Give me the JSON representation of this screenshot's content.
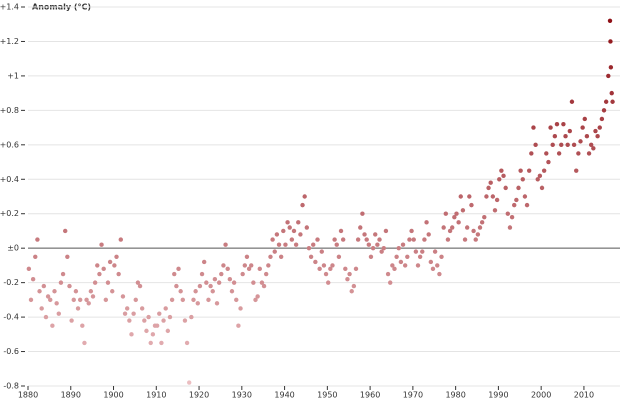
{
  "chart_data": {
    "type": "scatter",
    "y_label": "Anomaly (°C)",
    "xlim": [
      1880,
      2017.5
    ],
    "ylim": [
      -0.8,
      1.4
    ],
    "xticks": [
      1880,
      1890,
      1900,
      1910,
      1920,
      1930,
      1940,
      1950,
      1960,
      1970,
      1980,
      1990,
      2000,
      2010
    ],
    "yticks": [
      {
        "value": 1.4,
        "label": "+1.4"
      },
      {
        "value": 1.2,
        "label": "+1.2"
      },
      {
        "value": 1,
        "label": "+1"
      },
      {
        "value": 0.8,
        "label": "+0.8"
      },
      {
        "value": 0.6,
        "label": "+0.6"
      },
      {
        "value": 0.4,
        "label": "+0.4"
      },
      {
        "value": 0.2,
        "label": "+0.2"
      },
      {
        "value": 0,
        "label": "±0"
      },
      {
        "value": -0.2,
        "label": "-0.2"
      },
      {
        "value": -0.4,
        "label": "-0.4"
      },
      {
        "value": -0.6,
        "label": "-0.6"
      },
      {
        "value": -0.8,
        "label": "-0.8"
      }
    ],
    "grid": true,
    "color_scale": [
      "#ecc0c3",
      "#8b0a10"
    ],
    "x": [
      1880.2,
      1880.7,
      1881.2,
      1881.7,
      1882.2,
      1882.7,
      1883.2,
      1883.7,
      1884.2,
      1884.7,
      1885.2,
      1885.7,
      1886.2,
      1886.7,
      1887.2,
      1887.7,
      1888.2,
      1888.7,
      1889.2,
      1889.7,
      1890.2,
      1890.7,
      1891.2,
      1891.7,
      1892.2,
      1892.7,
      1893.2,
      1893.7,
      1894.2,
      1894.7,
      1895.2,
      1895.7,
      1896.2,
      1896.7,
      1897.2,
      1897.7,
      1898.2,
      1898.7,
      1899.2,
      1899.7,
      1900.2,
      1900.7,
      1901.2,
      1901.7,
      1902.2,
      1902.7,
      1903.2,
      1903.7,
      1904.2,
      1904.7,
      1905.2,
      1905.7,
      1906.2,
      1906.7,
      1907.2,
      1907.7,
      1908.2,
      1908.7,
      1909.2,
      1909.7,
      1910.2,
      1910.7,
      1911.2,
      1911.7,
      1912.2,
      1912.7,
      1913.2,
      1913.7,
      1914.2,
      1914.7,
      1915.2,
      1915.7,
      1916.2,
      1916.7,
      1917.2,
      1917.7,
      1918.2,
      1918.7,
      1919.2,
      1919.7,
      1920.2,
      1920.7,
      1921.2,
      1921.7,
      1922.2,
      1922.7,
      1923.2,
      1923.7,
      1924.2,
      1924.7,
      1925.2,
      1925.7,
      1926.2,
      1926.7,
      1927.2,
      1927.7,
      1928.2,
      1928.7,
      1929.2,
      1929.7,
      1930.2,
      1930.7,
      1931.2,
      1931.7,
      1932.2,
      1932.7,
      1933.2,
      1933.7,
      1934.2,
      1934.7,
      1935.2,
      1935.7,
      1936.2,
      1936.7,
      1937.2,
      1937.7,
      1938.2,
      1938.7,
      1939.2,
      1939.7,
      1940.2,
      1940.7,
      1941.2,
      1941.7,
      1942.2,
      1942.7,
      1943.2,
      1943.7,
      1944.2,
      1944.7,
      1945.2,
      1945.7,
      1946.2,
      1946.7,
      1947.2,
      1947.7,
      1948.2,
      1948.7,
      1949.2,
      1949.7,
      1950.2,
      1950.7,
      1951.2,
      1951.7,
      1952.2,
      1952.7,
      1953.2,
      1953.7,
      1954.2,
      1954.7,
      1955.2,
      1955.7,
      1956.2,
      1956.7,
      1957.2,
      1957.7,
      1958.2,
      1958.7,
      1959.2,
      1959.7,
      1960.2,
      1960.7,
      1961.2,
      1961.7,
      1962.2,
      1962.7,
      1963.2,
      1963.7,
      1964.2,
      1964.7,
      1965.2,
      1965.7,
      1966.2,
      1966.7,
      1967.2,
      1967.7,
      1968.2,
      1968.7,
      1969.2,
      1969.7,
      1970.2,
      1970.7,
      1971.2,
      1971.7,
      1972.2,
      1972.7,
      1973.2,
      1973.7,
      1974.2,
      1974.7,
      1975.2,
      1975.7,
      1976.2,
      1976.7,
      1977.2,
      1977.7,
      1978.2,
      1978.7,
      1979.2,
      1979.7,
      1980.2,
      1980.7,
      1981.2,
      1981.7,
      1982.2,
      1982.7,
      1983.2,
      1983.7,
      1984.2,
      1984.7,
      1985.2,
      1985.7,
      1986.2,
      1986.7,
      1987.2,
      1987.7,
      1988.2,
      1988.7,
      1989.2,
      1989.7,
      1990.2,
      1990.7,
      1991.2,
      1991.7,
      1992.2,
      1992.7,
      1993.2,
      1993.7,
      1994.2,
      1994.7,
      1995.2,
      1995.7,
      1996.2,
      1996.7,
      1997.2,
      1997.7,
      1998.2,
      1998.7,
      1999.2,
      1999.7,
      2000.2,
      2000.7,
      2001.2,
      2001.7,
      2002.2,
      2002.7,
      2003.2,
      2003.7,
      2004.2,
      2004.7,
      2005.2,
      2005.7,
      2006.2,
      2006.7,
      2007.2,
      2007.7,
      2008.2,
      2008.7,
      2009.2,
      2009.7,
      2010.2,
      2010.7,
      2011.2,
      2011.7,
      2012.2,
      2012.7,
      2013.2,
      2013.7,
      2014.2,
      2014.7,
      2015.2,
      2015.7,
      2016.1,
      2016.2,
      2016.3,
      2016.5,
      2016.7
    ],
    "values": [
      -0.12,
      -0.3,
      -0.18,
      -0.05,
      0.05,
      -0.25,
      -0.35,
      -0.22,
      -0.4,
      -0.28,
      -0.3,
      -0.45,
      -0.25,
      -0.32,
      -0.38,
      -0.2,
      -0.15,
      0.1,
      -0.05,
      -0.22,
      -0.42,
      -0.3,
      -0.25,
      -0.35,
      -0.3,
      -0.45,
      -0.55,
      -0.3,
      -0.32,
      -0.25,
      -0.28,
      -0.2,
      -0.1,
      -0.15,
      0.02,
      -0.12,
      -0.3,
      -0.2,
      -0.08,
      -0.25,
      -0.1,
      -0.05,
      -0.15,
      0.05,
      -0.28,
      -0.38,
      -0.35,
      -0.42,
      -0.5,
      -0.38,
      -0.3,
      -0.2,
      -0.22,
      -0.35,
      -0.42,
      -0.48,
      -0.4,
      -0.55,
      -0.5,
      -0.45,
      -0.45,
      -0.38,
      -0.55,
      -0.42,
      -0.35,
      -0.48,
      -0.4,
      -0.3,
      -0.15,
      -0.22,
      -0.12,
      -0.25,
      -0.3,
      -0.42,
      -0.55,
      -0.78,
      -0.4,
      -0.3,
      -0.25,
      -0.32,
      -0.22,
      -0.15,
      -0.08,
      -0.2,
      -0.3,
      -0.22,
      -0.25,
      -0.18,
      -0.32,
      -0.2,
      -0.15,
      -0.1,
      0.02,
      -0.12,
      -0.18,
      -0.25,
      -0.2,
      -0.3,
      -0.45,
      -0.35,
      -0.15,
      -0.1,
      -0.05,
      -0.12,
      -0.1,
      -0.2,
      -0.3,
      -0.28,
      -0.12,
      -0.2,
      -0.22,
      -0.15,
      -0.1,
      -0.05,
      0.05,
      -0.02,
      0.08,
      0.02,
      -0.05,
      0.1,
      0.02,
      0.15,
      0.12,
      0.05,
      0.1,
      0.02,
      0.15,
      0.08,
      0.25,
      0.3,
      0.12,
      0.0,
      -0.05,
      0.02,
      -0.08,
      0.05,
      -0.12,
      -0.02,
      -0.1,
      -0.15,
      -0.2,
      -0.12,
      -0.1,
      0.05,
      0.02,
      -0.05,
      0.1,
      0.05,
      -0.12,
      -0.18,
      -0.15,
      -0.25,
      -0.22,
      -0.12,
      0.05,
      0.12,
      0.2,
      0.08,
      0.05,
      0.02,
      -0.05,
      0.0,
      0.08,
      0.02,
      0.05,
      -0.02,
      0.0,
      0.1,
      -0.15,
      -0.2,
      -0.1,
      -0.12,
      -0.05,
      0.0,
      -0.08,
      0.02,
      -0.1,
      -0.05,
      0.05,
      0.1,
      0.05,
      -0.02,
      -0.1,
      -0.05,
      -0.02,
      0.05,
      0.15,
      0.08,
      -0.08,
      -0.12,
      -0.02,
      -0.1,
      -0.15,
      -0.05,
      0.12,
      0.2,
      0.05,
      0.1,
      0.12,
      0.18,
      0.2,
      0.15,
      0.3,
      0.22,
      0.05,
      0.12,
      0.3,
      0.25,
      0.1,
      0.05,
      0.08,
      0.12,
      0.15,
      0.18,
      0.3,
      0.35,
      0.38,
      0.3,
      0.22,
      0.28,
      0.4,
      0.45,
      0.42,
      0.35,
      0.2,
      0.12,
      0.18,
      0.25,
      0.28,
      0.35,
      0.45,
      0.4,
      0.3,
      0.25,
      0.45,
      0.55,
      0.7,
      0.6,
      0.4,
      0.42,
      0.35,
      0.45,
      0.55,
      0.5,
      0.7,
      0.6,
      0.65,
      0.72,
      0.55,
      0.6,
      0.72,
      0.65,
      0.6,
      0.68,
      0.85,
      0.6,
      0.45,
      0.55,
      0.62,
      0.7,
      0.75,
      0.65,
      0.55,
      0.6,
      0.58,
      0.68,
      0.65,
      0.7,
      0.75,
      0.8,
      0.85,
      1.0,
      1.32,
      1.2,
      1.05,
      0.9,
      0.85
    ]
  }
}
